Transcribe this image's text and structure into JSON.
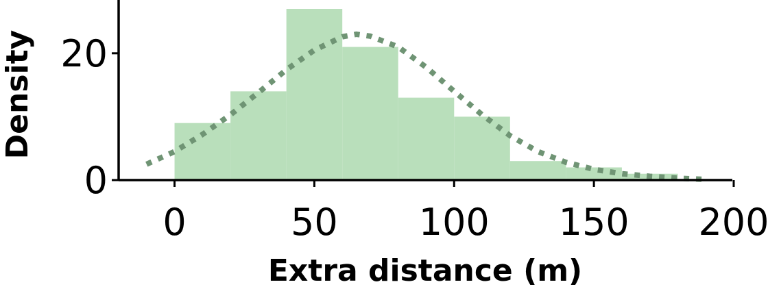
{
  "chart_data": {
    "type": "bar",
    "subtype": "histogram-with-density-curve",
    "title": "",
    "xlabel": "Extra distance (m)",
    "ylabel": "Density",
    "xlim": [
      -20,
      200
    ],
    "ylim": [
      0,
      27
    ],
    "x_ticks": [
      0,
      50,
      100,
      150,
      200
    ],
    "y_ticks": [
      0,
      20
    ],
    "grid": false,
    "legend": "none",
    "histogram": {
      "bin_edges": [
        0,
        20,
        40,
        60,
        80,
        100,
        120,
        140,
        160,
        180
      ],
      "values": [
        9,
        14,
        27,
        21,
        13,
        10,
        3,
        2,
        1
      ],
      "color": "#b9dfbb"
    },
    "curve": {
      "style": "dotted",
      "color": "#6f9474",
      "x": [
        -10,
        0,
        10,
        20,
        30,
        40,
        50,
        60,
        65,
        70,
        80,
        90,
        100,
        110,
        120,
        130,
        140,
        150,
        160,
        170,
        180,
        190
      ],
      "y": [
        2.5,
        4.5,
        7.2,
        10.3,
        13.8,
        17.4,
        20.5,
        22.6,
        23.0,
        22.7,
        21.0,
        17.8,
        14.0,
        10.3,
        7.0,
        4.5,
        2.8,
        1.7,
        1.0,
        0.6,
        0.3,
        0.1
      ]
    }
  }
}
